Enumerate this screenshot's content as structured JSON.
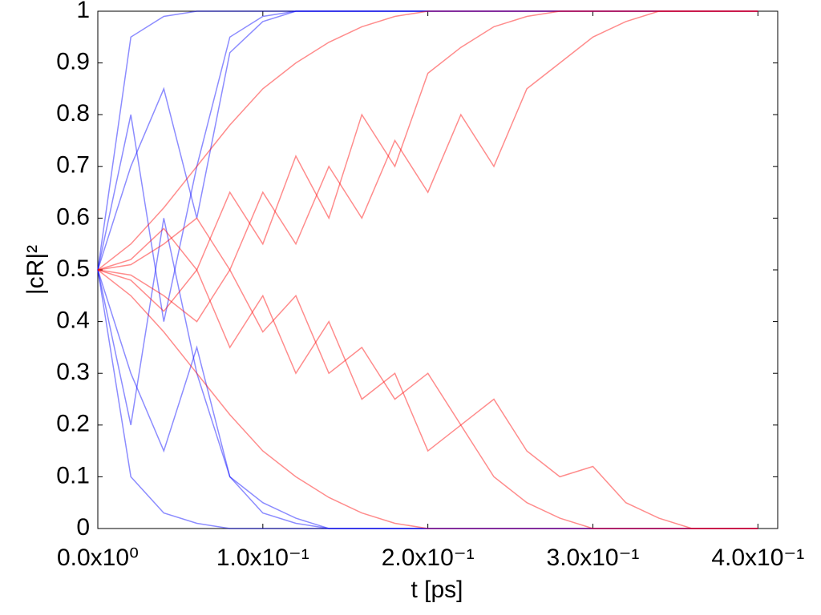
{
  "chart_data": {
    "type": "line",
    "x_label": "t [ps]",
    "y_label": "|cR|²",
    "x": [
      0,
      0.02,
      0.04,
      0.06,
      0.08,
      0.1,
      0.12,
      0.14,
      0.16,
      0.18,
      0.2,
      0.22,
      0.24,
      0.26,
      0.28,
      0.3,
      0.32,
      0.34,
      0.36,
      0.38,
      0.4
    ],
    "series": [
      {
        "color": "#0000ff",
        "values": [
          0.5,
          0.95,
          0.99,
          1,
          1,
          1,
          1,
          1,
          1,
          1,
          1,
          1,
          1,
          1,
          1,
          1,
          1,
          1,
          1,
          1,
          1
        ]
      },
      {
        "color": "#0000ff",
        "values": [
          0.5,
          0.1,
          0.03,
          0.01,
          0,
          0,
          0,
          0,
          0,
          0,
          0,
          0,
          0,
          0,
          0,
          0,
          0,
          0,
          0,
          0,
          0
        ]
      },
      {
        "color": "#0000ff",
        "values": [
          0.5,
          0.7,
          0.85,
          0.6,
          0.92,
          0.98,
          1,
          1,
          1,
          1,
          1,
          1,
          1,
          1,
          1,
          1,
          1,
          1,
          1,
          1,
          1
        ]
      },
      {
        "color": "#0000ff",
        "values": [
          0.5,
          0.3,
          0.15,
          0.35,
          0.1,
          0.05,
          0.02,
          0,
          0,
          0,
          0,
          0,
          0,
          0,
          0,
          0,
          0,
          0,
          0,
          0,
          0
        ]
      },
      {
        "color": "#0000ff",
        "values": [
          0.5,
          0.8,
          0.4,
          0.7,
          0.95,
          0.99,
          1,
          1,
          1,
          1,
          1,
          1,
          1,
          1,
          1,
          1,
          1,
          1,
          1,
          1,
          1
        ]
      },
      {
        "color": "#0000ff",
        "values": [
          0.5,
          0.2,
          0.6,
          0.3,
          0.1,
          0.03,
          0.01,
          0,
          0,
          0,
          0,
          0,
          0,
          0,
          0,
          0,
          0,
          0,
          0,
          0,
          0
        ]
      },
      {
        "color": "#ff0000",
        "values": [
          0.5,
          0.55,
          0.62,
          0.7,
          0.78,
          0.85,
          0.9,
          0.94,
          0.97,
          0.99,
          1,
          1,
          1,
          1,
          1,
          1,
          1,
          1,
          1,
          1,
          1
        ]
      },
      {
        "color": "#ff0000",
        "values": [
          0.5,
          0.45,
          0.38,
          0.3,
          0.22,
          0.15,
          0.1,
          0.06,
          0.03,
          0.01,
          0,
          0,
          0,
          0,
          0,
          0,
          0,
          0,
          0,
          0,
          0
        ]
      },
      {
        "color": "#ff0000",
        "values": [
          0.5,
          0.52,
          0.58,
          0.5,
          0.65,
          0.55,
          0.72,
          0.6,
          0.8,
          0.7,
          0.88,
          0.93,
          0.97,
          0.99,
          1,
          1,
          1,
          1,
          1,
          1,
          1
        ]
      },
      {
        "color": "#ff0000",
        "values": [
          0.5,
          0.48,
          0.42,
          0.5,
          0.35,
          0.45,
          0.3,
          0.4,
          0.25,
          0.3,
          0.15,
          0.2,
          0.1,
          0.05,
          0.02,
          0,
          0,
          0,
          0,
          0,
          0
        ]
      },
      {
        "color": "#ff0000",
        "values": [
          0.5,
          0.51,
          0.55,
          0.6,
          0.5,
          0.65,
          0.55,
          0.7,
          0.6,
          0.75,
          0.65,
          0.8,
          0.7,
          0.85,
          0.9,
          0.95,
          0.98,
          1,
          1,
          1,
          1
        ]
      },
      {
        "color": "#ff0000",
        "values": [
          0.5,
          0.49,
          0.45,
          0.4,
          0.5,
          0.38,
          0.45,
          0.3,
          0.35,
          0.25,
          0.3,
          0.2,
          0.25,
          0.15,
          0.1,
          0.12,
          0.05,
          0.02,
          0,
          0,
          0
        ]
      }
    ],
    "xlim": [
      0,
      0.412
    ],
    "xticks": [
      {
        "value": 0,
        "label": "0.0x10⁰"
      },
      {
        "value": 0.1,
        "label": "1.0x10⁻¹"
      },
      {
        "value": 0.2,
        "label": "2.0x10⁻¹"
      },
      {
        "value": 0.3,
        "label": "3.0x10⁻¹"
      },
      {
        "value": 0.4,
        "label": "4.0x10⁻¹"
      }
    ],
    "ylim": [
      0,
      1
    ],
    "yticks": [
      0,
      0.1,
      0.2,
      0.3,
      0.4,
      0.5,
      0.6,
      0.7,
      0.8,
      0.9,
      1
    ]
  }
}
